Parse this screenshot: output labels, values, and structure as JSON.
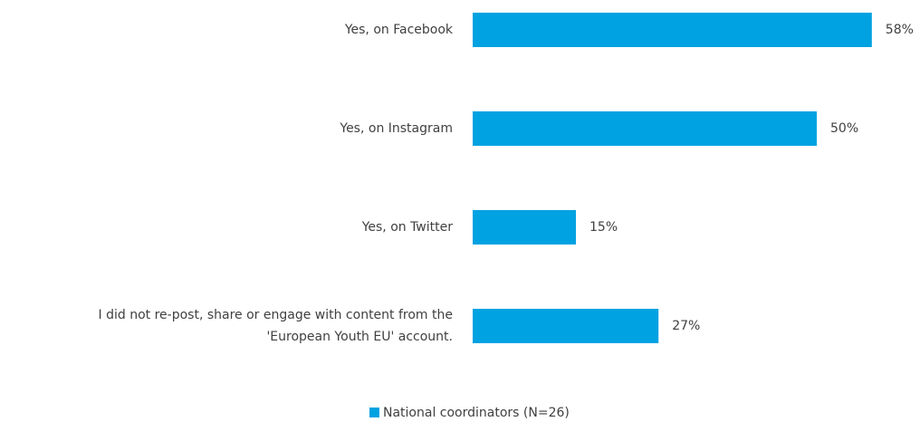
{
  "colors": {
    "bar": "#00a2e1",
    "text": "#404040"
  },
  "chart_data": {
    "type": "bar",
    "orientation": "horizontal",
    "categories": [
      [
        "Yes, on Facebook"
      ],
      [
        "Yes, on Instagram"
      ],
      [
        "Yes, on Twitter"
      ],
      [
        "I did not re-post, share or engage with content from the",
        "'European Youth EU' account."
      ]
    ],
    "series": [
      {
        "name": "National coordinators (N=26)",
        "values": [
          58,
          50,
          15,
          27
        ],
        "labels": [
          "58%",
          "50%",
          "15%",
          "27%"
        ]
      }
    ],
    "xlim": [
      0,
      100
    ],
    "grid": false,
    "legend": "bottom-center"
  }
}
